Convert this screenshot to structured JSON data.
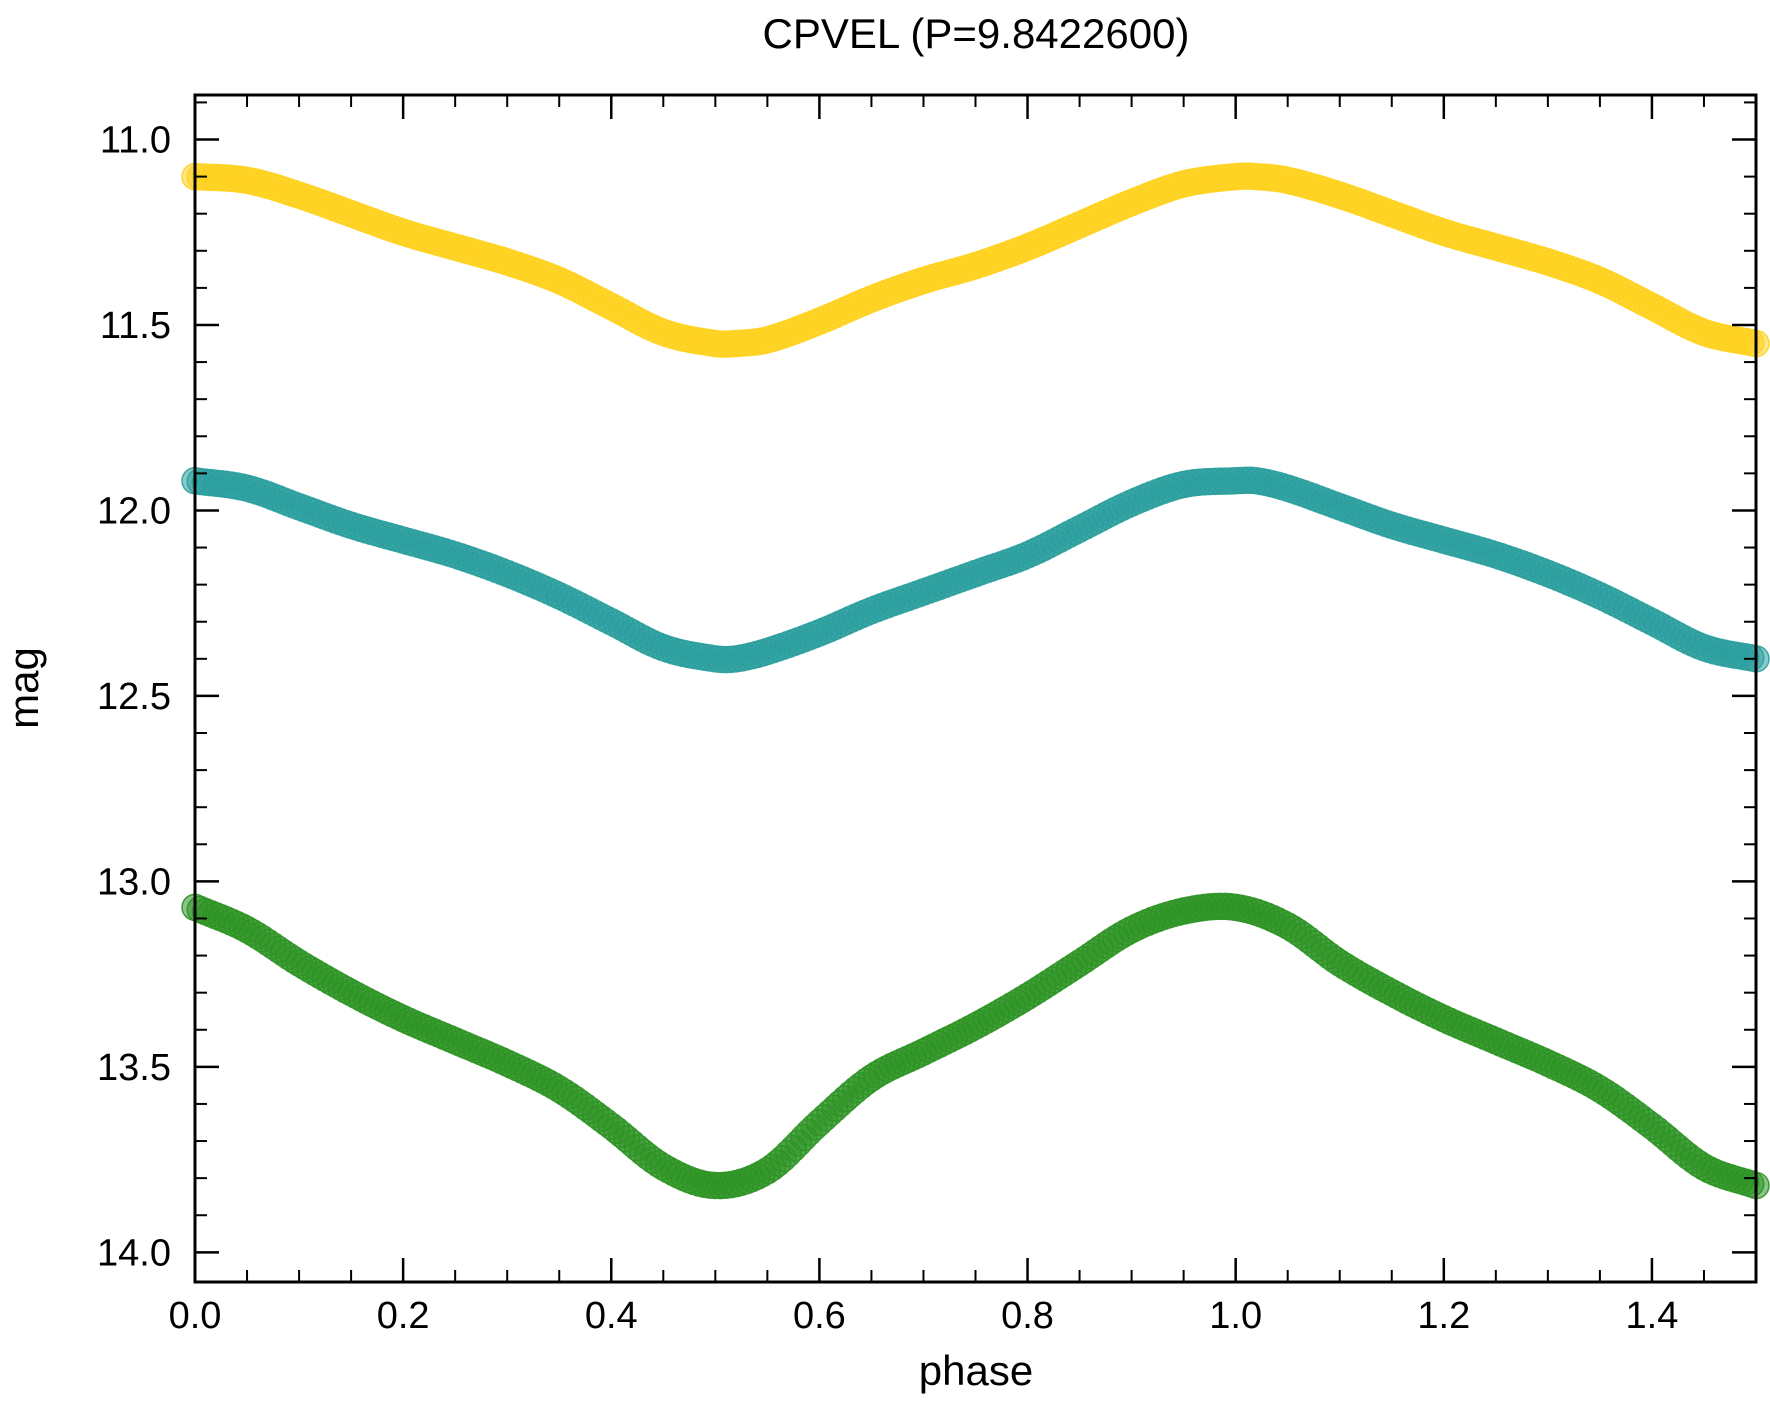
{
  "chart_data": {
    "type": "scatter",
    "title": "CPVEL (P=9.8422600)",
    "xlabel": "phase",
    "ylabel": "mag",
    "xlim": [
      0.0,
      1.5
    ],
    "ylim": [
      14.08,
      10.88
    ],
    "y_inverted": true,
    "grid": false,
    "legend": "none",
    "x_ticks": [
      0.0,
      0.2,
      0.4,
      0.6,
      0.8,
      1.0,
      1.2,
      1.4
    ],
    "x_tick_labels": [
      "0.0",
      "0.2",
      "0.4",
      "0.6",
      "0.8",
      "1.0",
      "1.2",
      "1.4"
    ],
    "y_ticks": [
      11.0,
      11.5,
      12.0,
      12.5,
      13.0,
      13.5,
      14.0
    ],
    "y_tick_labels": [
      "11.0",
      "11.5",
      "12.0",
      "12.5",
      "13.0",
      "13.5",
      "14.0"
    ],
    "series": [
      {
        "color": "#FFD21F",
        "x": [
          0.0,
          0.05,
          0.1,
          0.15,
          0.2,
          0.25,
          0.3,
          0.35,
          0.4,
          0.45,
          0.5,
          0.52,
          0.55,
          0.6,
          0.65,
          0.7,
          0.75,
          0.8,
          0.85,
          0.9,
          0.95,
          1.0,
          1.02,
          1.05,
          1.1,
          1.15,
          1.2,
          1.25,
          1.3,
          1.35,
          1.4,
          1.45,
          1.5
        ],
        "y": [
          11.1,
          11.11,
          11.15,
          11.2,
          11.25,
          11.29,
          11.33,
          11.38,
          11.45,
          11.52,
          11.55,
          11.55,
          11.54,
          11.49,
          11.43,
          11.38,
          11.34,
          11.29,
          11.23,
          11.17,
          11.12,
          11.1,
          11.1,
          11.11,
          11.15,
          11.2,
          11.25,
          11.29,
          11.33,
          11.38,
          11.45,
          11.52,
          11.55
        ]
      },
      {
        "color": "#2B9E9E",
        "x": [
          0.0,
          0.05,
          0.1,
          0.15,
          0.2,
          0.25,
          0.3,
          0.35,
          0.4,
          0.45,
          0.5,
          0.52,
          0.55,
          0.6,
          0.65,
          0.7,
          0.75,
          0.8,
          0.85,
          0.9,
          0.95,
          1.0,
          1.02,
          1.05,
          1.1,
          1.15,
          1.2,
          1.25,
          1.3,
          1.35,
          1.4,
          1.45,
          1.5
        ],
        "y": [
          11.92,
          11.94,
          11.99,
          12.04,
          12.08,
          12.12,
          12.17,
          12.23,
          12.3,
          12.37,
          12.4,
          12.4,
          12.38,
          12.33,
          12.27,
          12.22,
          12.17,
          12.12,
          12.05,
          11.98,
          11.93,
          11.92,
          11.92,
          11.94,
          11.99,
          12.04,
          12.08,
          12.12,
          12.17,
          12.23,
          12.3,
          12.37,
          12.4
        ]
      },
      {
        "color": "#2E9425",
        "x": [
          0.0,
          0.05,
          0.1,
          0.15,
          0.2,
          0.25,
          0.3,
          0.35,
          0.4,
          0.45,
          0.5,
          0.55,
          0.6,
          0.65,
          0.7,
          0.75,
          0.8,
          0.85,
          0.9,
          0.95,
          1.0,
          1.05,
          1.1,
          1.15,
          1.2,
          1.25,
          1.3,
          1.35,
          1.4,
          1.45,
          1.5
        ],
        "y": [
          13.07,
          13.13,
          13.22,
          13.3,
          13.37,
          13.43,
          13.49,
          13.56,
          13.66,
          13.77,
          13.82,
          13.78,
          13.65,
          13.53,
          13.46,
          13.39,
          13.31,
          13.22,
          13.13,
          13.08,
          13.07,
          13.12,
          13.22,
          13.3,
          13.37,
          13.43,
          13.49,
          13.56,
          13.66,
          13.77,
          13.82
        ]
      }
    ]
  }
}
